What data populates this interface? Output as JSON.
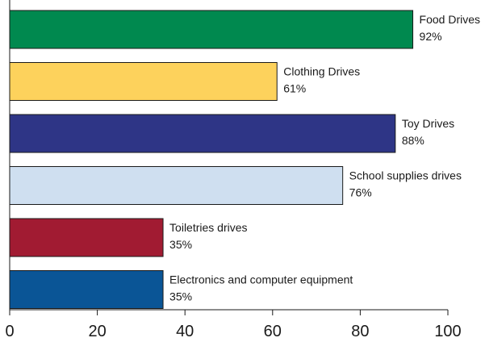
{
  "chart_data": {
    "type": "bar",
    "orientation": "horizontal",
    "title": "",
    "xlabel": "",
    "ylabel": "",
    "xlim": [
      0,
      100
    ],
    "xticks": [
      0,
      20,
      40,
      60,
      80,
      100
    ],
    "grid": false,
    "legend": "none",
    "categories": [
      "Food Drives",
      "Clothing Drives",
      "Toy Drives",
      "School supplies drives",
      "Toiletries drives",
      "Electronics and computer equipment"
    ],
    "values": [
      92,
      61,
      88,
      76,
      35,
      35
    ],
    "value_labels": [
      "92%",
      "61%",
      "88%",
      "76%",
      "35%",
      "35%"
    ],
    "colors": [
      "#00894f",
      "#fdd25c",
      "#2e3586",
      "#cfdff0",
      "#a11b32",
      "#0a5596"
    ]
  }
}
